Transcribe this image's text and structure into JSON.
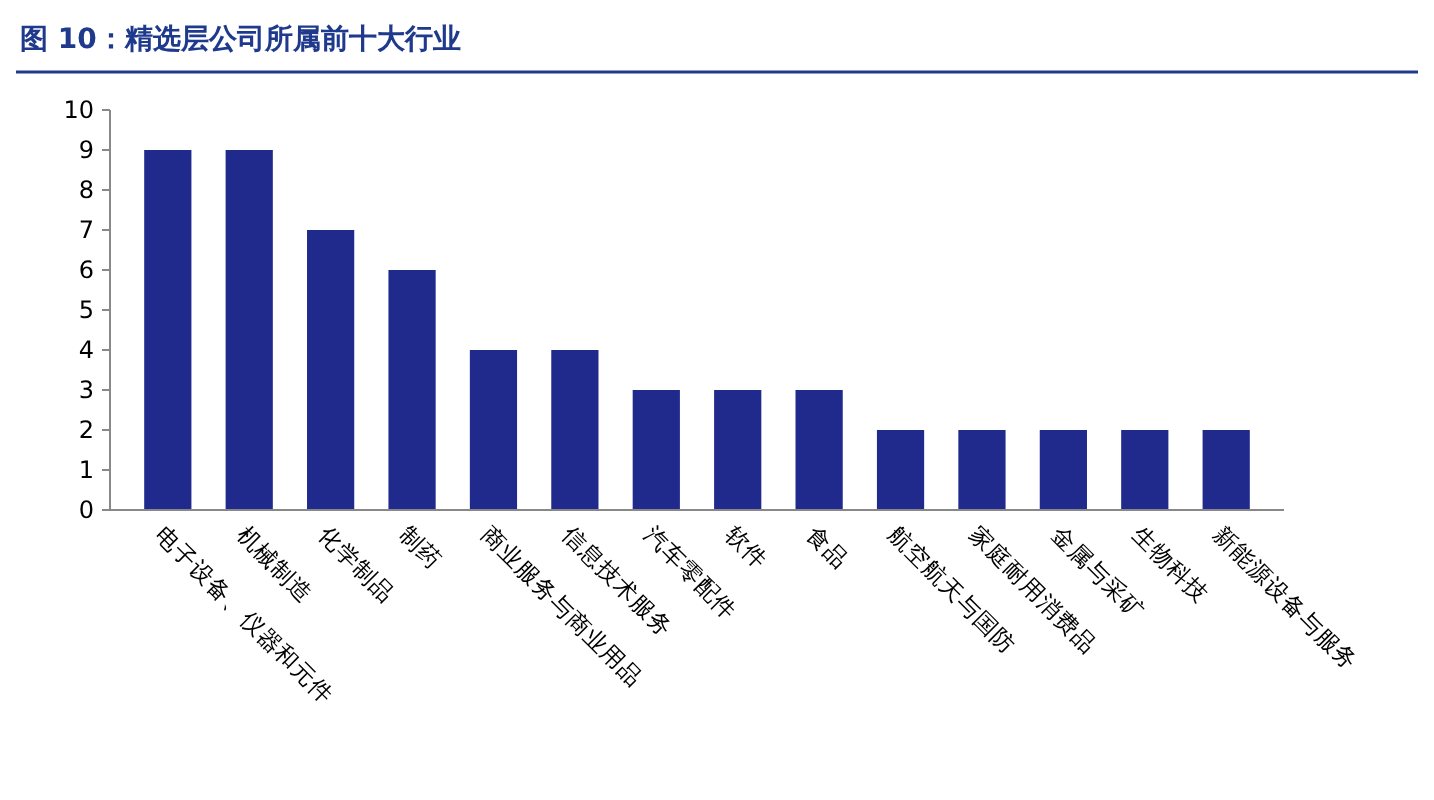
{
  "chart_data": {
    "type": "bar",
    "title": "图 10：精选层公司所属前十大行业",
    "categories": [
      "电子设备、仪器和元件",
      "机械制造",
      "化学制品",
      "制药",
      "商业服务与商业用品",
      "信息技术服务",
      "汽车零配件",
      "软件",
      "食品",
      "航空航天与国防",
      "家庭耐用消费品",
      "金属与采矿",
      "生物科技",
      "新能源设备与服务"
    ],
    "values": [
      9,
      9,
      7,
      6,
      4,
      4,
      3,
      3,
      3,
      2,
      2,
      2,
      2,
      2
    ],
    "color": "#1f2a8c",
    "ylim": [
      0,
      10
    ],
    "yticks": [
      0,
      1,
      2,
      3,
      4,
      5,
      6,
      7,
      8,
      9,
      10
    ],
    "grid": false
  }
}
